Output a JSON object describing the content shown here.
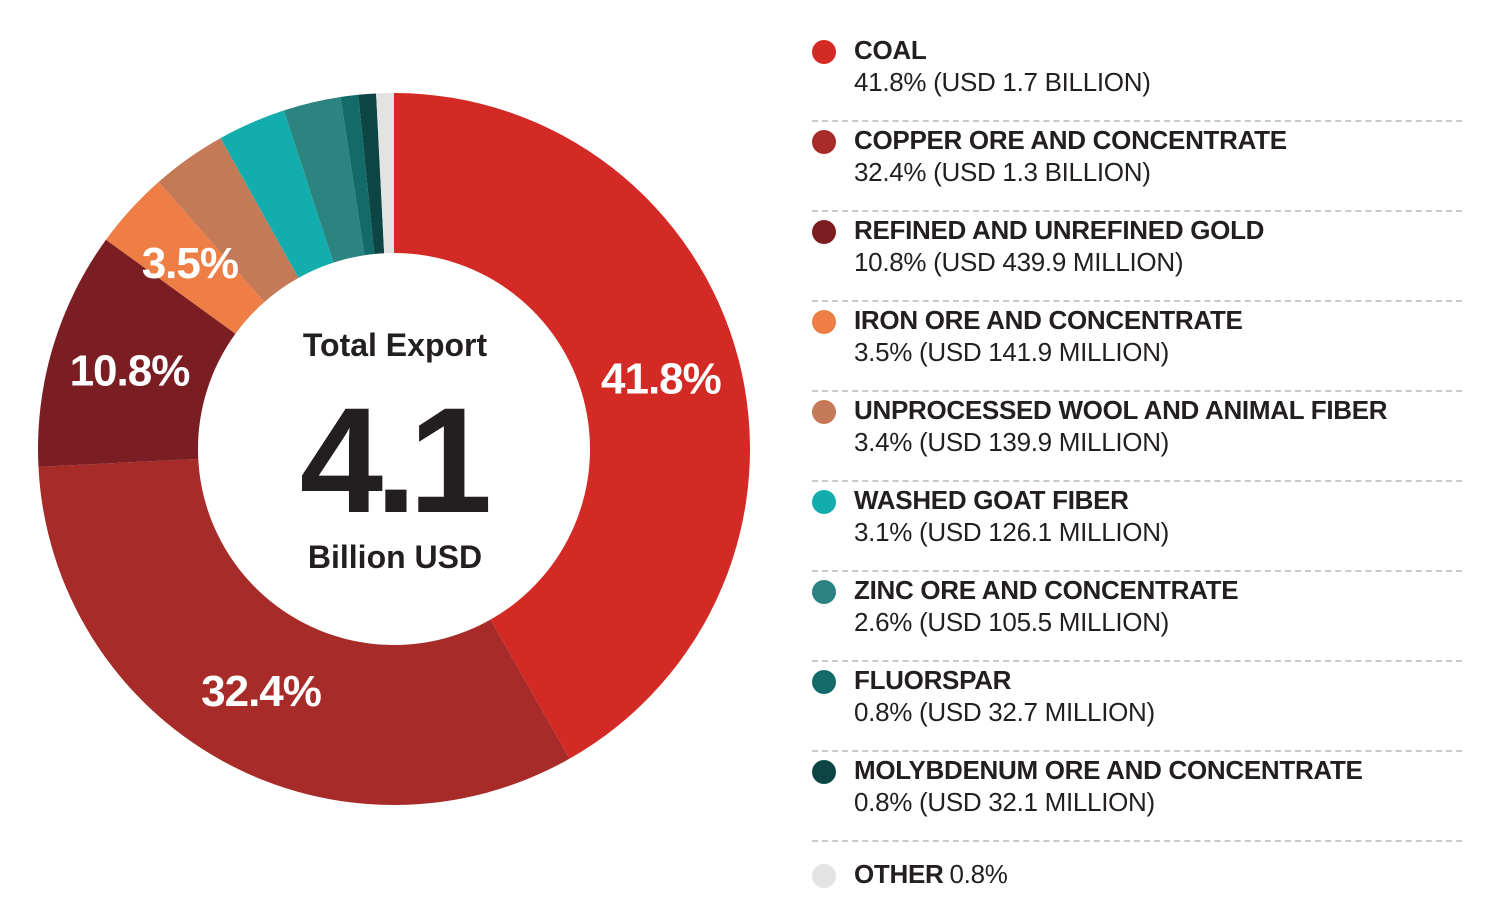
{
  "chart_data": {
    "type": "pie",
    "donut": true,
    "center": {
      "title": "Total Export",
      "value": "4.1",
      "unit": "Billion USD"
    },
    "slices": [
      {
        "name": "COAL",
        "percent": 41.8,
        "label": "41.8%",
        "value_text": "41.8% (USD 1.7 BILLION)",
        "color": "#d42a25"
      },
      {
        "name": "COPPER ORE AND CONCENTRATE",
        "percent": 32.4,
        "label": "32.4%",
        "value_text": "32.4% (USD 1.3 BILLION)",
        "color": "#a72b28"
      },
      {
        "name": "REFINED AND UNREFINED GOLD",
        "percent": 10.8,
        "label": "10.8%",
        "value_text": "10.8% (USD 439.9 MILLION)",
        "color": "#7a1e24"
      },
      {
        "name": "IRON ORE AND CONCENTRATE",
        "percent": 3.5,
        "label": "3.5%",
        "value_text": "3.5% (USD 141.9 MILLION)",
        "color": "#ee7e45"
      },
      {
        "name": "UNPROCESSED WOOL AND ANIMAL FIBER",
        "percent": 3.4,
        "label": "",
        "value_text": "3.4% (USD 139.9 MILLION)",
        "color": "#c47a56"
      },
      {
        "name": "WASHED GOAT FIBER",
        "percent": 3.1,
        "label": "",
        "value_text": "3.1% (USD 126.1 MILLION)",
        "color": "#14adad"
      },
      {
        "name": "ZINC ORE AND CONCENTRATE",
        "percent": 2.6,
        "label": "",
        "value_text": "2.6% (USD 105.5 MILLION)",
        "color": "#2b8480"
      },
      {
        "name": "FLUORSPAR",
        "percent": 0.8,
        "label": "",
        "value_text": "0.8% (USD 32.7 MILLION)",
        "color": "#136b69"
      },
      {
        "name": "MOLYBDENUM ORE AND CONCENTRATE",
        "percent": 0.8,
        "label": "",
        "value_text": "0.8% (USD 32.1 MILLION)",
        "color": "#0d4545"
      },
      {
        "name": "OTHER",
        "percent": 0.8,
        "label": "",
        "value_text": "0.8%",
        "color": "#e3e3e3"
      }
    ]
  }
}
